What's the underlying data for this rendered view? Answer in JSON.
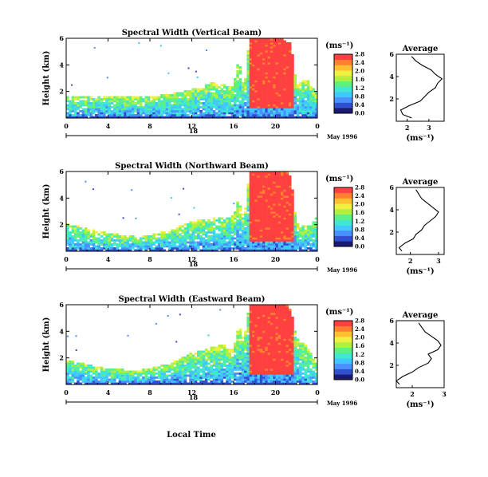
{
  "figure": {
    "units_label": "(ms⁻¹)",
    "date_label": "May 1996",
    "xlabel": "Local Time",
    "avg_title": "Average",
    "avg_xlabel": "(ms⁻¹)",
    "ylabel": "Height (km)",
    "day_label": "18"
  },
  "colorbar": {
    "colors": [
      "#1a1a70",
      "#3050d0",
      "#4a90ff",
      "#40c8ff",
      "#40e8d0",
      "#60f080",
      "#b0f040",
      "#f0f040",
      "#ffc030",
      "#ff8030",
      "#ff4040"
    ],
    "colors_note": "dark blue to red sequence"
  },
  "chart_data": [
    {
      "type": "heatmap",
      "title": "Spectral Width (Vertical Beam)",
      "xlabel": "Local Time",
      "ylabel": "Height (km)",
      "xlim": [
        0,
        24
      ],
      "ylim": [
        0,
        6
      ],
      "x_ticks": [
        "0",
        "4",
        "8",
        "12",
        "16",
        "20",
        "0"
      ],
      "x_tick_values": [
        0,
        4,
        8,
        12,
        16,
        20,
        24
      ],
      "y_ticks": [
        "2",
        "4",
        "6"
      ],
      "y_tick_values": [
        2,
        4,
        6
      ],
      "colorbar_ticks": [
        "0.0",
        "0.4",
        "0.8",
        "1.2",
        "1.6",
        "2.0",
        "2.4",
        "2.8"
      ],
      "echo_top_km": [
        [
          0,
          1.6
        ],
        [
          4,
          1.6
        ],
        [
          8,
          1.5
        ],
        [
          11,
          1.9
        ],
        [
          12.5,
          2.2
        ],
        [
          14,
          2.6
        ],
        [
          16,
          2.3
        ],
        [
          16.5,
          4.5
        ],
        [
          17,
          1.9
        ],
        [
          17.5,
          6.0
        ],
        [
          18.5,
          6.0
        ],
        [
          20.5,
          6.0
        ],
        [
          21.5,
          5.5
        ],
        [
          22,
          2.4
        ],
        [
          23,
          2.9
        ],
        [
          24,
          1.7
        ]
      ],
      "high_width_region_hours": [
        17.3,
        21.5
      ],
      "average_profile": {
        "xlim": [
          1.5,
          3.7
        ],
        "x_ticks": [
          "2",
          "3"
        ],
        "x_tick_values": [
          2,
          3
        ],
        "y_ticks": [
          "2",
          "4",
          "6"
        ],
        "heights_km": [
          0.3,
          0.6,
          1.0,
          1.4,
          1.8,
          2.2,
          2.6,
          3.0,
          3.4,
          3.8,
          4.2,
          4.6,
          5.0,
          5.4,
          5.8
        ],
        "values": [
          2.2,
          1.8,
          1.7,
          2.1,
          2.6,
          2.8,
          3.0,
          3.3,
          3.4,
          3.6,
          3.3,
          3.1,
          2.7,
          2.4,
          2.2
        ]
      }
    },
    {
      "type": "heatmap",
      "title": "Spectral Width (Northward Beam)",
      "xlabel": "Local Time",
      "ylabel": "Height (km)",
      "xlim": [
        0,
        24
      ],
      "ylim": [
        0,
        6
      ],
      "x_ticks": [
        "0",
        "4",
        "8",
        "12",
        "16",
        "20",
        "0"
      ],
      "x_tick_values": [
        0,
        4,
        8,
        12,
        16,
        20,
        24
      ],
      "y_ticks": [
        "2",
        "4",
        "6"
      ],
      "y_tick_values": [
        2,
        4,
        6
      ],
      "colorbar_ticks": [
        "0.0",
        "0.4",
        "0.8",
        "1.2",
        "1.6",
        "2.0",
        "2.4",
        "2.8"
      ],
      "echo_top_km": [
        [
          0,
          2.0
        ],
        [
          4,
          1.3
        ],
        [
          7,
          1.0
        ],
        [
          10,
          1.5
        ],
        [
          12,
          2.2
        ],
        [
          14,
          2.4
        ],
        [
          16,
          2.6
        ],
        [
          16.5,
          4.0
        ],
        [
          17,
          2.3
        ],
        [
          17.5,
          6.0
        ],
        [
          21,
          6.0
        ],
        [
          21.5,
          5.5
        ],
        [
          22,
          2.0
        ],
        [
          23,
          1.8
        ],
        [
          24,
          2.5
        ]
      ],
      "high_width_region_hours": [
        17.3,
        21.5
      ],
      "average_profile": {
        "xlim": [
          1.5,
          3.2
        ],
        "x_ticks": [
          "2",
          "3"
        ],
        "x_tick_values": [
          2,
          3
        ],
        "y_ticks": [
          "2",
          "4",
          "6"
        ],
        "heights_km": [
          0.3,
          0.6,
          1.0,
          1.4,
          1.8,
          2.2,
          2.6,
          3.0,
          3.4,
          3.8,
          4.2,
          4.6,
          5.0,
          5.4,
          5.8
        ],
        "values": [
          1.7,
          1.6,
          1.8,
          2.1,
          2.2,
          2.4,
          2.5,
          2.7,
          2.9,
          3.0,
          2.8,
          2.6,
          2.4,
          2.3,
          2.2
        ]
      }
    },
    {
      "type": "heatmap",
      "title": "Spectral Width (Eastward Beam)",
      "xlabel": "Local Time",
      "ylabel": "Height (km)",
      "xlim": [
        0,
        24
      ],
      "ylim": [
        0,
        6
      ],
      "x_ticks": [
        "0",
        "4",
        "8",
        "12",
        "16",
        "20",
        "0"
      ],
      "x_tick_values": [
        0,
        4,
        8,
        12,
        16,
        20,
        24
      ],
      "y_ticks": [
        "2",
        "4",
        "6"
      ],
      "y_tick_values": [
        2,
        4,
        6
      ],
      "colorbar_ticks": [
        "0.0",
        "0.4",
        "0.8",
        "1.2",
        "1.6",
        "2.0",
        "2.4",
        "2.8"
      ],
      "echo_top_km": [
        [
          0,
          1.8
        ],
        [
          4,
          1.1
        ],
        [
          7,
          1.0
        ],
        [
          10,
          1.5
        ],
        [
          12,
          2.3
        ],
        [
          13,
          2.5
        ],
        [
          15,
          3.0
        ],
        [
          16,
          2.5
        ],
        [
          16.5,
          4.5
        ],
        [
          17,
          3.2
        ],
        [
          17.5,
          6.0
        ],
        [
          21,
          6.0
        ],
        [
          21.5,
          5.5
        ],
        [
          22,
          3.5
        ],
        [
          23,
          2.8
        ],
        [
          24,
          1.4
        ]
      ],
      "high_width_region_hours": [
        17.3,
        21.5
      ],
      "average_profile": {
        "xlim": [
          1.5,
          3.0
        ],
        "x_ticks": [
          "2",
          "3"
        ],
        "x_tick_values": [
          2,
          3
        ],
        "y_ticks": [
          "2",
          "4",
          "6"
        ],
        "heights_km": [
          0.3,
          0.6,
          1.0,
          1.4,
          1.8,
          2.2,
          2.6,
          3.0,
          3.4,
          3.8,
          4.2,
          4.6,
          5.0,
          5.4,
          5.8
        ],
        "values": [
          1.6,
          1.5,
          1.7,
          2.0,
          2.2,
          2.5,
          2.6,
          2.5,
          2.8,
          2.9,
          2.8,
          2.6,
          2.4,
          2.3,
          2.2
        ]
      }
    }
  ]
}
